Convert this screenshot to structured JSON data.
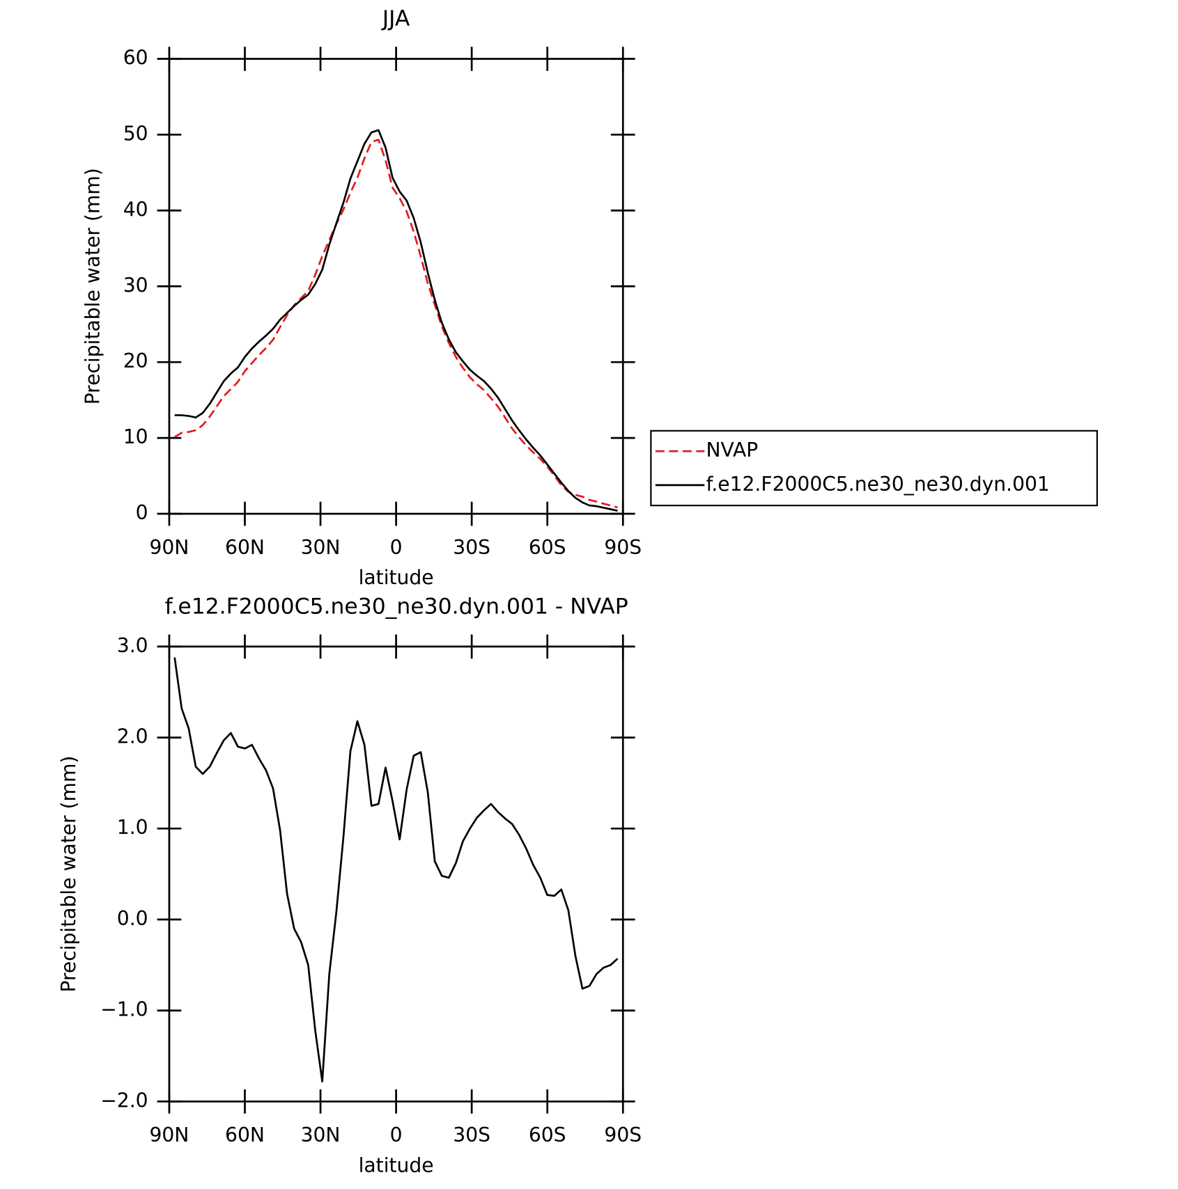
{
  "chart_data": [
    {
      "type": "line",
      "title": "JJA",
      "xlabel": "latitude",
      "ylabel": "Precipitable water (mm)",
      "x": [
        87.86,
        85.07,
        82.28,
        79.49,
        76.7,
        73.92,
        71.13,
        68.34,
        65.55,
        62.76,
        59.97,
        57.18,
        54.39,
        51.6,
        48.81,
        46.02,
        43.24,
        40.45,
        37.66,
        34.87,
        32.08,
        29.29,
        26.5,
        23.71,
        20.92,
        18.13,
        15.35,
        12.56,
        9.77,
        6.98,
        4.19,
        1.4,
        -1.4,
        -4.19,
        -6.98,
        -9.77,
        -12.56,
        -15.35,
        -18.13,
        -20.92,
        -23.71,
        -26.5,
        -29.29,
        -32.08,
        -34.87,
        -37.66,
        -40.45,
        -43.24,
        -46.02,
        -48.81,
        -51.6,
        -54.39,
        -57.18,
        -59.97,
        -62.76,
        -65.55,
        -68.34,
        -71.13,
        -73.92,
        -76.7,
        -79.49,
        -82.28,
        -85.07,
        -87.86
      ],
      "series": [
        {
          "name": "NVAP",
          "color": "#e41a1c",
          "dashed": true,
          "values": [
            10.12,
            10.68,
            10.8,
            11.02,
            11.7,
            12.82,
            14.17,
            15.53,
            16.45,
            17.4,
            18.82,
            19.88,
            20.93,
            21.86,
            22.96,
            24.62,
            26.22,
            27.5,
            28.45,
            29.4,
            31.52,
            33.98,
            36.1,
            38.22,
            40.1,
            42.35,
            44.32,
            46.88,
            49.05,
            49.33,
            46.63,
            43.0,
            41.62,
            39.87,
            37.2,
            33.96,
            30.4,
            27.56,
            24.72,
            22.54,
            20.68,
            19.24,
            18.0,
            17.08,
            16.3,
            15.23,
            14.12,
            12.69,
            11.25,
            10.07,
            9.02,
            8.1,
            7.24,
            6.23,
            5.04,
            3.77,
            2.9,
            2.5,
            2.26,
            1.83,
            1.6,
            1.33,
            1.1,
            0.83
          ]
        },
        {
          "name": "f.e12.F2000C5.ne30_ne30.dyn.001",
          "color": "#000000",
          "dashed": false,
          "values": [
            13.0,
            13.0,
            12.9,
            12.7,
            13.3,
            14.5,
            16.0,
            17.5,
            18.5,
            19.3,
            20.7,
            21.8,
            22.7,
            23.5,
            24.4,
            25.6,
            26.5,
            27.4,
            28.2,
            28.9,
            30.3,
            32.2,
            35.5,
            38.3,
            41.0,
            44.2,
            46.5,
            48.8,
            50.3,
            50.6,
            48.3,
            44.3,
            42.5,
            41.3,
            39.0,
            35.8,
            31.8,
            28.2,
            25.2,
            23.0,
            21.3,
            20.1,
            19.0,
            18.2,
            17.5,
            16.5,
            15.3,
            13.8,
            12.3,
            11.0,
            9.8,
            8.7,
            7.7,
            6.5,
            5.3,
            4.1,
            3.0,
            2.1,
            1.5,
            1.1,
            1.0,
            0.8,
            0.6,
            0.4
          ]
        }
      ],
      "xlim": [
        90,
        -90
      ],
      "xticks": [
        {
          "value": 90,
          "label": "90N"
        },
        {
          "value": 60,
          "label": "60N"
        },
        {
          "value": 30,
          "label": "30N"
        },
        0,
        {
          "value": -30,
          "label": "30S"
        },
        {
          "value": -60,
          "label": "60S"
        },
        {
          "value": -90,
          "label": "90S"
        }
      ],
      "ylim": [
        0,
        60
      ],
      "yticks": [
        0,
        10,
        20,
        30,
        40,
        50,
        60
      ],
      "legend": "outside-right"
    },
    {
      "type": "line",
      "title": "f.e12.F2000C5.ne30_ne30.dyn.001 - NVAP",
      "xlabel": "latitude",
      "ylabel": "Precipitable water (mm)",
      "x": [
        87.86,
        85.07,
        82.28,
        79.49,
        76.7,
        73.92,
        71.13,
        68.34,
        65.55,
        62.76,
        59.97,
        57.18,
        54.39,
        51.6,
        48.81,
        46.02,
        43.24,
        40.45,
        37.66,
        34.87,
        32.08,
        29.29,
        26.5,
        23.71,
        20.92,
        18.13,
        15.35,
        12.56,
        9.77,
        6.98,
        4.19,
        1.4,
        -1.4,
        -4.19,
        -6.98,
        -9.77,
        -12.56,
        -15.35,
        -18.13,
        -20.92,
        -23.71,
        -26.5,
        -29.29,
        -32.08,
        -34.87,
        -37.66,
        -40.45,
        -43.24,
        -46.02,
        -48.81,
        -51.6,
        -54.39,
        -57.18,
        -59.97,
        -62.76,
        -65.55,
        -68.34,
        -71.13,
        -73.92,
        -76.7,
        -79.49,
        -82.28,
        -85.07,
        -87.86
      ],
      "series": [
        {
          "color": "#000000",
          "dashed": false,
          "values": [
            2.88,
            2.32,
            2.1,
            1.68,
            1.6,
            1.68,
            1.83,
            1.97,
            2.05,
            1.9,
            1.88,
            1.92,
            1.77,
            1.64,
            1.44,
            0.98,
            0.28,
            -0.1,
            -0.25,
            -0.5,
            -1.22,
            -1.78,
            -0.6,
            0.08,
            0.9,
            1.85,
            2.18,
            1.92,
            1.25,
            1.27,
            1.67,
            1.3,
            0.88,
            1.43,
            1.8,
            1.84,
            1.4,
            0.64,
            0.48,
            0.46,
            0.62,
            0.86,
            1.0,
            1.12,
            1.2,
            1.27,
            1.18,
            1.11,
            1.05,
            0.93,
            0.78,
            0.6,
            0.46,
            0.27,
            0.26,
            0.33,
            0.1,
            -0.4,
            -0.76,
            -0.73,
            -0.6,
            -0.53,
            -0.5,
            -0.43
          ]
        }
      ],
      "xlim": [
        90,
        -90
      ],
      "xticks": [
        {
          "value": 90,
          "label": "90N"
        },
        {
          "value": 60,
          "label": "60N"
        },
        {
          "value": 30,
          "label": "30N"
        },
        0,
        {
          "value": -30,
          "label": "30S"
        },
        {
          "value": -60,
          "label": "60S"
        },
        {
          "value": -90,
          "label": "90S"
        }
      ],
      "ylim": [
        -2,
        3
      ],
      "yticks": [
        {
          "value": -2,
          "label": "−2.0"
        },
        {
          "value": -1,
          "label": "−1.0"
        },
        {
          "value": 0,
          "label": "0.0"
        },
        {
          "value": 1,
          "label": "1.0"
        },
        {
          "value": 2,
          "label": "2.0"
        },
        {
          "value": 3,
          "label": "3.0"
        }
      ]
    }
  ]
}
